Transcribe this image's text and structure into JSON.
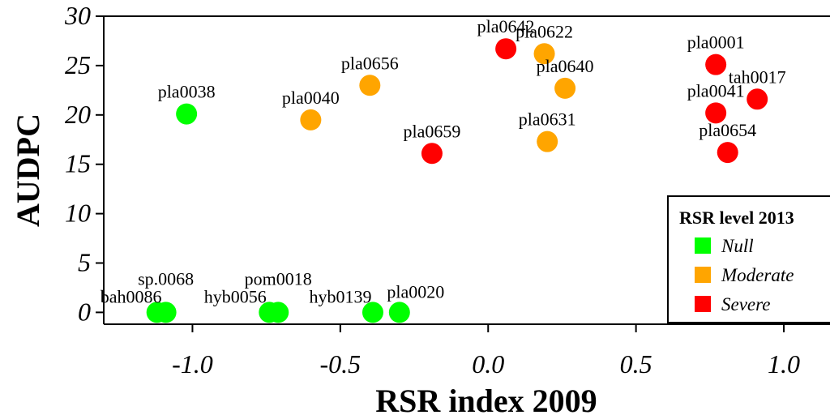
{
  "chart_data": {
    "type": "scatter",
    "xlabel": "RSR index 2009",
    "ylabel": "AUDPC",
    "xlim": [
      -1.3,
      1.2
    ],
    "ylim": [
      -1.2,
      30.0
    ],
    "x_ticks": [
      -1.0,
      -0.5,
      0.0,
      0.5,
      1.0
    ],
    "x_tick_labels": [
      "-1.0",
      "-0.5",
      "0.0",
      "0.5",
      "1.0"
    ],
    "y_ticks": [
      0,
      5,
      10,
      15,
      20,
      25,
      30
    ],
    "y_tick_labels": [
      "0",
      "5",
      "10",
      "15",
      "20",
      "25",
      "30"
    ],
    "legend": {
      "title": "RSR level 2013",
      "position": "bottom-right",
      "entries": [
        {
          "label": "Null",
          "color": "#00ff00"
        },
        {
          "label": "Moderate",
          "color": "#ffa500"
        },
        {
          "label": "Severe",
          "color": "#ff0000"
        }
      ]
    },
    "points": [
      {
        "label": "pla0038",
        "x": -1.02,
        "y": 20.1,
        "group": "Null"
      },
      {
        "label": "sp.0068",
        "x": -1.09,
        "y": 0.0,
        "group": "Null"
      },
      {
        "label": "bah0086",
        "x": -1.12,
        "y": 0.0,
        "group": "Null"
      },
      {
        "label": "pom0018",
        "x": -0.71,
        "y": 0.0,
        "group": "Null"
      },
      {
        "label": "hyb0056",
        "x": -0.74,
        "y": 0.0,
        "group": "Null"
      },
      {
        "label": "hyb0139",
        "x": -0.39,
        "y": 0.0,
        "group": "Null"
      },
      {
        "label": "pla0020",
        "x": -0.3,
        "y": 0.0,
        "group": "Null"
      },
      {
        "label": "pla0040",
        "x": -0.6,
        "y": 19.5,
        "group": "Moderate"
      },
      {
        "label": "pla0656",
        "x": -0.4,
        "y": 23.0,
        "group": "Moderate"
      },
      {
        "label": "pla0622",
        "x": 0.19,
        "y": 26.2,
        "group": "Moderate"
      },
      {
        "label": "pla0640",
        "x": 0.26,
        "y": 22.7,
        "group": "Moderate"
      },
      {
        "label": "pla0631",
        "x": 0.2,
        "y": 17.3,
        "group": "Moderate"
      },
      {
        "label": "pla0642",
        "x": 0.06,
        "y": 26.7,
        "group": "Severe"
      },
      {
        "label": "pla0659",
        "x": -0.19,
        "y": 16.1,
        "group": "Severe"
      },
      {
        "label": "pla0001",
        "x": 0.77,
        "y": 25.1,
        "group": "Severe"
      },
      {
        "label": "pla0041",
        "x": 0.77,
        "y": 20.2,
        "group": "Severe"
      },
      {
        "label": "tah0017",
        "x": 0.91,
        "y": 21.6,
        "group": "Severe"
      },
      {
        "label": "pla0654",
        "x": 0.81,
        "y": 16.2,
        "group": "Severe"
      }
    ]
  }
}
